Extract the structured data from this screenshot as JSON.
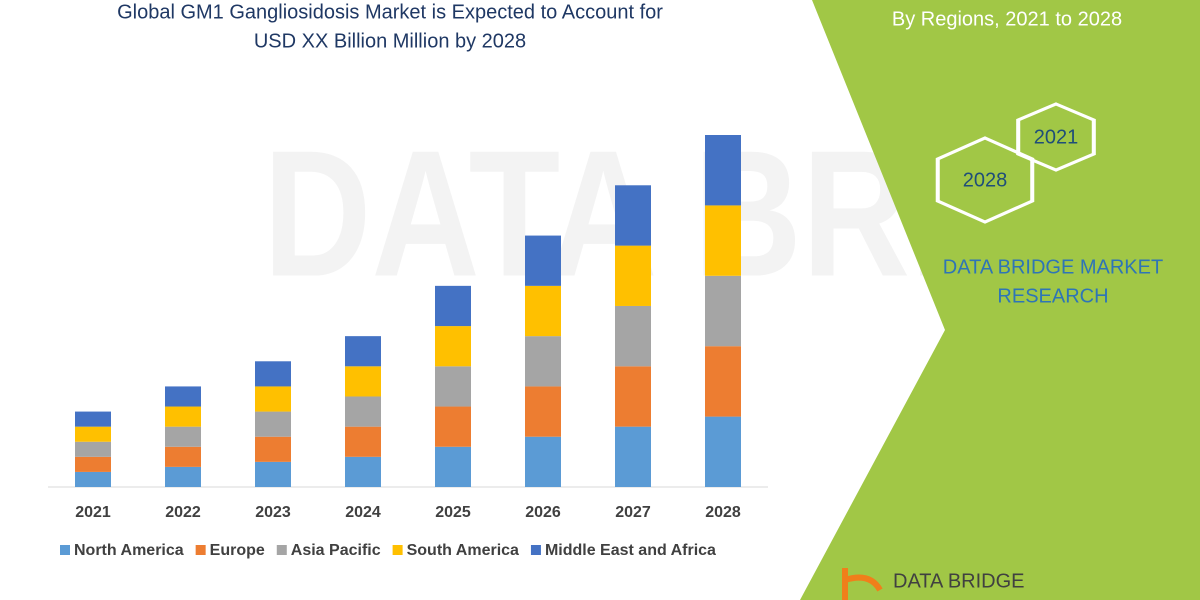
{
  "chart_data": {
    "type": "stacked-bar",
    "title": [
      "Global GM1 Gangliosidosis Market is Expected to Account for",
      "USD XX Billion Million by 2028"
    ],
    "categories": [
      "2021",
      "2022",
      "2023",
      "2024",
      "2025",
      "2026",
      "2027",
      "2028"
    ],
    "series": [
      {
        "name": "North America",
        "color": "#5b9bd5",
        "values": [
          15,
          20,
          25,
          30,
          40,
          50,
          60,
          70
        ]
      },
      {
        "name": "Europe",
        "color": "#ed7d31",
        "values": [
          15,
          20,
          25,
          30,
          40,
          50,
          60,
          70
        ]
      },
      {
        "name": "Asia Pacific",
        "color": "#a5a5a5",
        "values": [
          15,
          20,
          25,
          30,
          40,
          50,
          60,
          70
        ]
      },
      {
        "name": "South America",
        "color": "#ffc000",
        "values": [
          15,
          20,
          25,
          30,
          40,
          50,
          60,
          70
        ]
      },
      {
        "name": "Middle East and Africa",
        "color": "#4472c4",
        "values": [
          15,
          20,
          25,
          30,
          40,
          50,
          60,
          70
        ]
      }
    ],
    "legend": "bottom"
  },
  "side_panel": {
    "subtitle": "By Regions, 2021 to 2028",
    "hex_1": "2021",
    "hex_2": "2028",
    "brand": [
      "DATA BRIDGE MARKET",
      "RESEARCH"
    ],
    "logo_text": "DATA BRIDGE"
  }
}
